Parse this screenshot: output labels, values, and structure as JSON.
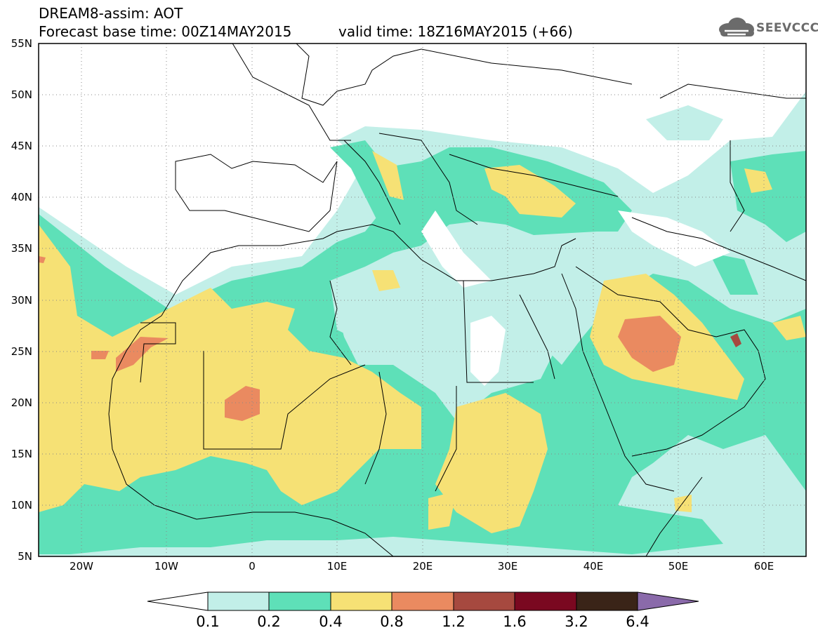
{
  "header": {
    "line1": "DREAM8-assim: AOT",
    "line2": "Forecast base time: 00Z14MAY2015",
    "line3": "valid time: 18Z16MAY2015 (+66)",
    "logo_text": "SEEVCCC",
    "logo_icon": "cloud-icon"
  },
  "axes": {
    "lat_labels": [
      "55N",
      "50N",
      "45N",
      "40N",
      "35N",
      "30N",
      "25N",
      "20N",
      "15N",
      "10N",
      "5N"
    ],
    "lon_labels": [
      "20W",
      "10W",
      "0",
      "10E",
      "20E",
      "30E",
      "40E",
      "50E",
      "60E"
    ],
    "lat_range": [
      5,
      55
    ],
    "lon_range": [
      -25,
      65
    ]
  },
  "colorbar": {
    "ticks": [
      "0.1",
      "0.2",
      "0.4",
      "0.8",
      "1.2",
      "1.6",
      "3.2",
      "6.4"
    ],
    "colors": [
      "#ffffff",
      "#c2efe8",
      "#5ee0b8",
      "#f6e175",
      "#ea8a60",
      "#a6493f",
      "#7a0820",
      "#3a2418",
      "#8a6aaa"
    ]
  },
  "legend_colors": {
    "c1": "#c2efe8",
    "c2": "#5ee0b8",
    "c3": "#f6e175",
    "c4": "#ea8a60",
    "c5": "#a6493f"
  }
}
